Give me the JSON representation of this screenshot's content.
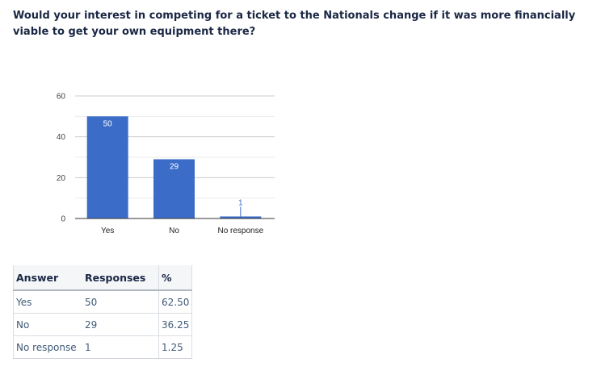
{
  "question": "Would your interest in competing for a ticket to the Nationals change if it was more financially viable to get your own equipment there?",
  "colors": {
    "bar": "#3a6cc8",
    "grid": "#cccccc",
    "axis": "#333333"
  },
  "chart_data": {
    "type": "bar",
    "categories": [
      "Yes",
      "No",
      "No response"
    ],
    "values": [
      50,
      29,
      1
    ],
    "yticks": [
      0,
      20,
      40,
      60
    ],
    "ylim": [
      0,
      60
    ],
    "grid": true,
    "title": "",
    "xlabel": "",
    "ylabel": ""
  },
  "table": {
    "headers": [
      "Answer",
      "Responses",
      "%"
    ],
    "rows": [
      {
        "answer": "Yes",
        "responses": "50",
        "percent": "62.50"
      },
      {
        "answer": "No",
        "responses": "29",
        "percent": "36.25"
      },
      {
        "answer": "No response",
        "responses": "1",
        "percent": "1.25"
      }
    ]
  }
}
